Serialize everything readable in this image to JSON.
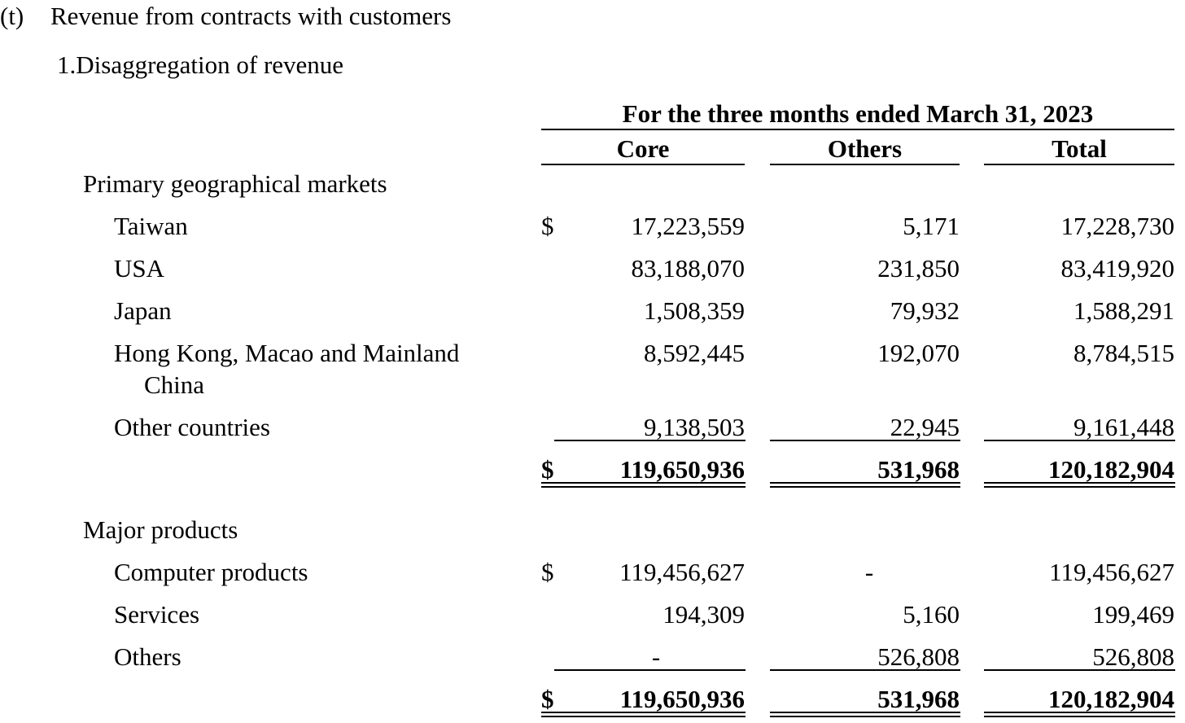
{
  "section": {
    "label": "(t)",
    "title": "Revenue from contracts with customers",
    "subtitle": "1.Disaggregation of revenue"
  },
  "table": {
    "period_header": "For the three months ended March 31, 2023",
    "columns": [
      "Core",
      "Others",
      "Total"
    ],
    "currency_symbol": "$",
    "geo": {
      "heading": "Primary geographical markets",
      "rows": [
        {
          "label": "Taiwan",
          "core": "17,223,559",
          "others": "5,171",
          "total": "17,228,730"
        },
        {
          "label": "USA",
          "core": "83,188,070",
          "others": "231,850",
          "total": "83,419,920"
        },
        {
          "label": "Japan",
          "core": "1,508,359",
          "others": "79,932",
          "total": "1,588,291"
        },
        {
          "label": "Hong Kong, Macao and Mainland",
          "label_cont": "China",
          "core": "8,592,445",
          "others": "192,070",
          "total": "8,784,515"
        },
        {
          "label": "Other countries",
          "core": "9,138,503",
          "others": "22,945",
          "total": "9,161,448"
        }
      ],
      "total": {
        "core": "119,650,936",
        "others": "531,968",
        "total": "120,182,904"
      }
    },
    "products": {
      "heading": "Major products",
      "rows": [
        {
          "label": "Computer products",
          "core": "119,456,627",
          "others": "-",
          "total": "119,456,627"
        },
        {
          "label": "Services",
          "core": "194,309",
          "others": "5,160",
          "total": "199,469"
        },
        {
          "label": "Others",
          "core": "-",
          "others": "526,808",
          "total": "526,808"
        }
      ],
      "total": {
        "core": "119,650,936",
        "others": "531,968",
        "total": "120,182,904"
      }
    }
  }
}
